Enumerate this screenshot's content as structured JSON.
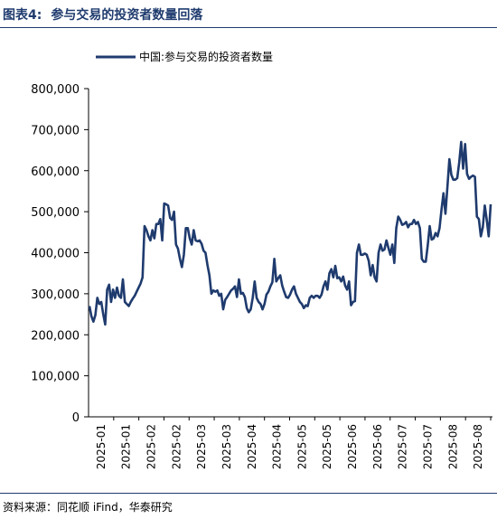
{
  "header": {
    "figure_number": "图表4:",
    "title": "参与交易的投资者数量回落"
  },
  "footer": {
    "source": "资料来源：同花顺 iFind，华泰研究"
  },
  "colors": {
    "series": "#1f3b6e",
    "axis": "#000000",
    "rule": "#1f3b6e"
  },
  "chart_data": {
    "type": "line",
    "title": "",
    "xlabel": "",
    "ylabel": "",
    "ylim": [
      0,
      800000
    ],
    "grid": false,
    "legend_position": "top-left",
    "ytick_labels": [
      "0",
      "100,000",
      "200,000",
      "300,000",
      "400,000",
      "500,000",
      "600,000",
      "700,000",
      "800,000"
    ],
    "xtick_labels": [
      "2025-01",
      "2025-01",
      "2025-02",
      "2025-02",
      "2025-03",
      "2025-03",
      "2025-04",
      "2025-04",
      "2025-05",
      "2025-05",
      "2025-06",
      "2025-06",
      "2025-07",
      "2025-07",
      "2025-08",
      "2025-08"
    ],
    "series": [
      {
        "name": "中国:参与交易的投资者数量",
        "values": [
          270000,
          245000,
          232000,
          248000,
          290000,
          275000,
          280000,
          250000,
          225000,
          310000,
          322000,
          280000,
          310000,
          290000,
          315000,
          295000,
          290000,
          335000,
          280000,
          275000,
          270000,
          280000,
          288000,
          295000,
          305000,
          315000,
          325000,
          340000,
          465000,
          455000,
          440000,
          430000,
          455000,
          435000,
          470000,
          470000,
          482000,
          430000,
          520000,
          518000,
          515000,
          485000,
          480000,
          500000,
          420000,
          410000,
          385000,
          365000,
          395000,
          460000,
          460000,
          435000,
          420000,
          455000,
          430000,
          428000,
          430000,
          422000,
          405000,
          400000,
          370000,
          345000,
          300000,
          308000,
          305000,
          308000,
          295000,
          300000,
          262000,
          285000,
          292000,
          300000,
          308000,
          312000,
          318000,
          292000,
          335000,
          300000,
          302000,
          292000,
          265000,
          255000,
          262000,
          290000,
          330000,
          290000,
          280000,
          275000,
          262000,
          275000,
          298000,
          305000,
          318000,
          328000,
          385000,
          330000,
          338000,
          345000,
          320000,
          305000,
          292000,
          290000,
          298000,
          310000,
          318000,
          300000,
          290000,
          280000,
          275000,
          265000,
          272000,
          270000,
          290000,
          295000,
          290000,
          295000,
          295000,
          290000,
          298000,
          318000,
          330000,
          310000,
          350000,
          360000,
          340000,
          368000,
          338000,
          340000,
          330000,
          342000,
          320000,
          310000,
          330000,
          272000,
          280000,
          282000,
          400000,
          420000,
          395000,
          395000,
          398000,
          395000,
          380000,
          345000,
          370000,
          340000,
          330000,
          400000,
          420000,
          405000,
          408000,
          430000,
          412000,
          395000,
          420000,
          375000,
          460000,
          488000,
          480000,
          468000,
          470000,
          475000,
          462000,
          470000,
          470000,
          480000,
          470000,
          475000,
          460000,
          385000,
          378000,
          378000,
          418000,
          465000,
          432000,
          435000,
          448000,
          440000,
          460000,
          505000,
          545000,
          495000,
          560000,
          628000,
          590000,
          578000,
          578000,
          582000,
          620000,
          670000,
          605000,
          665000,
          592000,
          580000,
          585000,
          588000,
          585000,
          488000,
          482000,
          440000,
          462000,
          515000,
          480000,
          440000,
          518000
        ]
      }
    ]
  }
}
